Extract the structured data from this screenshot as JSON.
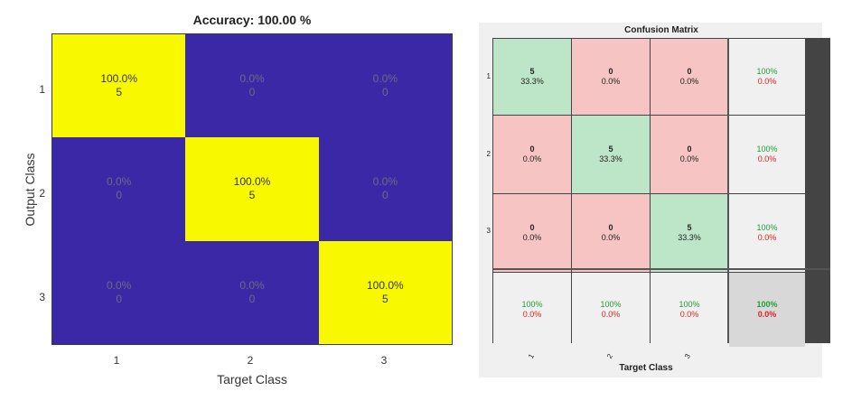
{
  "chart_data": [
    {
      "type": "heatmap",
      "title": "Accuracy: 100.00 %",
      "xlabel": "Target Class",
      "ylabel": "Output Class",
      "x_ticks": [
        "1",
        "2",
        "3"
      ],
      "y_ticks": [
        "1",
        "2",
        "3"
      ],
      "cells": [
        [
          {
            "pct": "100.0%",
            "count": "5"
          },
          {
            "pct": "0.0%",
            "count": "0"
          },
          {
            "pct": "0.0%",
            "count": "0"
          }
        ],
        [
          {
            "pct": "0.0%",
            "count": "0"
          },
          {
            "pct": "100.0%",
            "count": "5"
          },
          {
            "pct": "0.0%",
            "count": "0"
          }
        ],
        [
          {
            "pct": "0.0%",
            "count": "0"
          },
          {
            "pct": "0.0%",
            "count": "0"
          },
          {
            "pct": "100.0%",
            "count": "5"
          }
        ]
      ],
      "colors": {
        "high": "#f8f800",
        "low": "#3b28a6"
      }
    },
    {
      "type": "table",
      "title": "Confusion Matrix",
      "xlabel": "Target Class",
      "x_ticks": [
        "1",
        "2",
        "3"
      ],
      "y_ticks": [
        "1",
        "2",
        "3"
      ],
      "cells": [
        [
          {
            "count": "5",
            "pct": "33.3%"
          },
          {
            "count": "0",
            "pct": "0.0%"
          },
          {
            "count": "0",
            "pct": "0.0%"
          }
        ],
        [
          {
            "count": "0",
            "pct": "0.0%"
          },
          {
            "count": "5",
            "pct": "33.3%"
          },
          {
            "count": "0",
            "pct": "0.0%"
          }
        ],
        [
          {
            "count": "0",
            "pct": "0.0%"
          },
          {
            "count": "0",
            "pct": "0.0%"
          },
          {
            "count": "5",
            "pct": "33.3%"
          }
        ]
      ],
      "row_summary": [
        {
          "correct": "100%",
          "error": "0.0%"
        },
        {
          "correct": "100%",
          "error": "0.0%"
        },
        {
          "correct": "100%",
          "error": "0.0%"
        }
      ],
      "col_summary": [
        {
          "correct": "100%",
          "error": "0.0%"
        },
        {
          "correct": "100%",
          "error": "0.0%"
        },
        {
          "correct": "100%",
          "error": "0.0%"
        }
      ],
      "total": {
        "correct": "100%",
        "error": "0.0%"
      },
      "colors": {
        "correct": "#bde6c8",
        "wrong": "#f6c4c2",
        "summary": "#f0f0f0",
        "total": "#d8d8d8",
        "green_text": "#1e9e33",
        "red_text": "#e02020"
      }
    }
  ]
}
